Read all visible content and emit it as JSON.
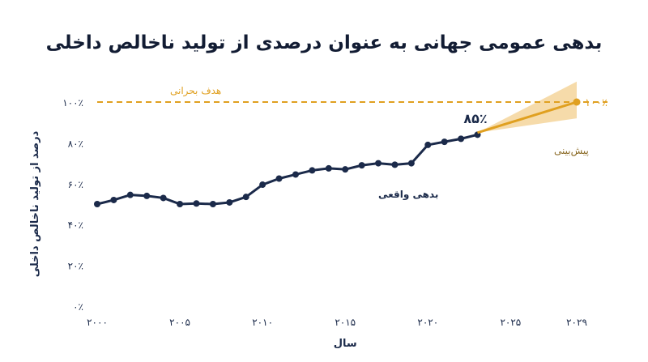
{
  "chart_data": {
    "type": "line",
    "title": "بدهی عمومی جهانی به عنوان درصدی از تولید ناخالص داخلی",
    "xlabel": "سال",
    "ylabel": "درصد از تولید ناخالص داخلی",
    "xlim": [
      2000,
      2029
    ],
    "ylim": [
      0,
      100
    ],
    "x_ticks": [
      {
        "value": 2000,
        "label": "۲۰۰۰"
      },
      {
        "value": 2005,
        "label": "۲۰۰۵"
      },
      {
        "value": 2010,
        "label": "۲۰۱۰"
      },
      {
        "value": 2015,
        "label": "۲۰۱۵"
      },
      {
        "value": 2020,
        "label": "۲۰۲۰"
      },
      {
        "value": 2025,
        "label": "۲۰۲۵"
      },
      {
        "value": 2029,
        "label": "۲۰۲۹"
      }
    ],
    "y_ticks": [
      {
        "value": 0,
        "label": "۰٪"
      },
      {
        "value": 20,
        "label": "۲۰٪"
      },
      {
        "value": 40,
        "label": "۴۰٪"
      },
      {
        "value": 60,
        "label": "۶۰٪"
      },
      {
        "value": 80,
        "label": "۸۰٪"
      },
      {
        "value": 100,
        "label": "۱۰۰٪"
      }
    ],
    "grid": false,
    "series": [
      {
        "name": "بدهی واقعی",
        "color": "#1b2a4a",
        "x": [
          2000,
          2001,
          2002,
          2003,
          2004,
          2005,
          2006,
          2007,
          2008,
          2009,
          2010,
          2011,
          2012,
          2013,
          2014,
          2015,
          2016,
          2017,
          2018,
          2019,
          2020,
          2021,
          2022,
          2023
        ],
        "y": [
          50,
          52,
          54.5,
          54,
          53,
          50,
          50.3,
          50,
          50.8,
          53.5,
          59.5,
          62.5,
          64.5,
          66.5,
          67.5,
          67,
          69,
          70,
          69.3,
          70,
          79,
          80.5,
          82,
          84
        ]
      },
      {
        "name": "پیش‌بینی",
        "color": "#e0a020",
        "x": [
          2023,
          2029
        ],
        "y": [
          85,
          100
        ],
        "band": {
          "x": [
            2023,
            2029
          ],
          "lower": [
            85,
            92
          ],
          "upper": [
            85,
            110
          ]
        }
      }
    ],
    "annotations": {
      "threshold": {
        "value": 100,
        "label": "هدف بحرانی",
        "color": "#e0a020"
      },
      "current_value_label": "۸۵٪",
      "end_value_label": "۱۰۰٪"
    }
  }
}
